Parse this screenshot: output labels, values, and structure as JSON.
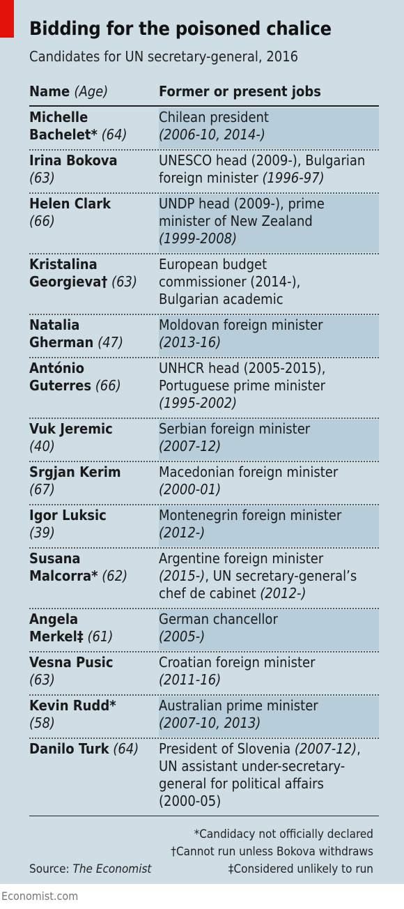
{
  "title": "Bidding for the poisoned chalice",
  "subtitle": "Candidates for UN secretary-general, 2016",
  "headers": {
    "name": "Name",
    "age": "(Age)",
    "jobs": "Former or present jobs"
  },
  "candidates": [
    {
      "name_line1": "Michelle",
      "name_line2": "Bachelet*",
      "age": "(64)",
      "job": [
        [
          "Chilean president",
          ""
        ],
        [
          "",
          "(2006-10, 2014-)"
        ]
      ]
    },
    {
      "name_line1": "Irina Bokova",
      "name_line2": "",
      "age": "(63)",
      "job": [
        [
          "UNESCO head (2009-), Bulgarian",
          ""
        ],
        [
          "foreign minister ",
          "(1996-97)"
        ]
      ]
    },
    {
      "name_line1": "Helen Clark",
      "name_line2": "",
      "age": "(66)",
      "job": [
        [
          "UNDP head (2009-), prime",
          ""
        ],
        [
          "minister of New Zealand",
          ""
        ],
        [
          "",
          "(1999-2008)"
        ]
      ]
    },
    {
      "name_line1": "Kristalina",
      "name_line2": "Georgieva†",
      "age": "(63)",
      "job": [
        [
          "European budget",
          ""
        ],
        [
          "commissioner (2014-),",
          ""
        ],
        [
          "Bulgarian academic",
          ""
        ]
      ]
    },
    {
      "name_line1": "Natalia",
      "name_line2": "Gherman",
      "age": "(47)",
      "job": [
        [
          "Moldovan foreign minister",
          ""
        ],
        [
          "",
          "(2013-16)"
        ]
      ]
    },
    {
      "name_line1": "António",
      "name_line2": "Guterres",
      "age": "(66)",
      "job": [
        [
          "UNHCR head (2005-2015),",
          ""
        ],
        [
          "Portuguese prime minister",
          ""
        ],
        [
          "",
          "(1995-2002)"
        ]
      ]
    },
    {
      "name_line1": "Vuk Jeremic",
      "name_line2": "",
      "age": "(40)",
      "job": [
        [
          "Serbian foreign minister",
          ""
        ],
        [
          "",
          "(2007-12)"
        ]
      ]
    },
    {
      "name_line1": "Srgjan Kerim",
      "name_line2": "",
      "age": "(67)",
      "job": [
        [
          "Macedonian foreign minister",
          ""
        ],
        [
          "",
          "(2000-01)"
        ]
      ]
    },
    {
      "name_line1": "Igor Luksic",
      "name_line2": "",
      "age": "(39)",
      "job": [
        [
          "Montenegrin foreign minister",
          ""
        ],
        [
          "",
          "(2012-)"
        ]
      ]
    },
    {
      "name_line1": "Susana",
      "name_line2": "Malcorra*",
      "age": "(62)",
      "job": [
        [
          "Argentine foreign minister",
          ""
        ],
        [
          "",
          "(2015-)",
          ", UN secretary-general’s"
        ],
        [
          "chef de cabinet ",
          "(2012-)"
        ]
      ]
    },
    {
      "name_line1": "Angela",
      "name_line2": "Merkel‡",
      "age": "(61)",
      "job": [
        [
          "German chancellor",
          ""
        ],
        [
          "",
          "(2005-)"
        ]
      ]
    },
    {
      "name_line1": "Vesna Pusic",
      "name_line2": "",
      "age": "(63)",
      "job": [
        [
          "Croatian foreign minister",
          ""
        ],
        [
          "",
          "(2011-16)"
        ]
      ]
    },
    {
      "name_line1": "Kevin Rudd*",
      "name_line2": "",
      "age": "(58)",
      "job": [
        [
          "Australian prime minister",
          ""
        ],
        [
          "",
          "(2007-10, 2013)"
        ]
      ]
    },
    {
      "name_line1": "Danilo Turk",
      "name_line2": "",
      "age": "(64)",
      "job": [
        [
          "President of Slovenia ",
          "(2007-12)",
          ","
        ],
        [
          "UN assistant under-secretary-",
          ""
        ],
        [
          "general for political affairs",
          ""
        ],
        [
          "(2000-05)",
          ""
        ]
      ]
    }
  ],
  "notes": {
    "note1": "*Candidacy not officially declared",
    "note2": "†Cannot run unless Bokova withdraws",
    "note3": "‡Considered unlikely to run"
  },
  "source": {
    "label": "Source: ",
    "name": "The Economist"
  },
  "footer": "Economist.com",
  "colors": {
    "panel": "#cfdde5",
    "shade": "#b7cdd9",
    "accent": "#e3120b"
  }
}
